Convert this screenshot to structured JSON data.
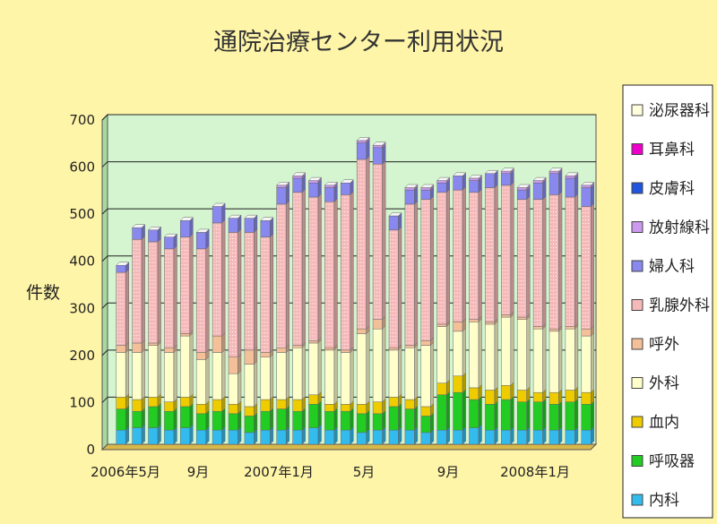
{
  "chart_data": {
    "type": "bar",
    "stacked": true,
    "title": "通院治療センター利用状況",
    "ylabel": "件数",
    "xlabel": "",
    "ylim": [
      0,
      700
    ],
    "yticks": [
      "0",
      "100",
      "200",
      "300",
      "400",
      "500",
      "600",
      "700"
    ],
    "x_tick_labels": [
      "2006年5月",
      "9月",
      "2007年1月",
      "5月",
      "9月",
      "2008年1月"
    ],
    "categories": [
      "2006-04",
      "2006-05",
      "2006-06",
      "2006-07",
      "2006-08",
      "2006-09",
      "2006-10",
      "2006-11",
      "2006-12",
      "2007-01",
      "2007-02",
      "2007-03",
      "2007-04",
      "2007-05",
      "2007-06",
      "2007-07",
      "2007-08",
      "2007-09",
      "2007-10",
      "2007-11",
      "2007-12",
      "2008-01",
      "2008-02",
      "2008-03",
      "2008-04",
      "2008-05",
      "2008-06",
      "2008-07",
      "2008-08",
      "2008-09"
    ],
    "grid": true,
    "legend_position": "right",
    "series": [
      {
        "name": "内科",
        "color": "#33BBEE",
        "values": [
          30,
          35,
          35,
          30,
          35,
          30,
          30,
          30,
          25,
          30,
          30,
          30,
          35,
          30,
          30,
          25,
          30,
          30,
          30,
          25,
          30,
          30,
          35,
          30,
          30,
          30,
          30,
          30,
          30,
          30
        ]
      },
      {
        "name": "呼吸器",
        "color": "#22CC22",
        "values": [
          45,
          35,
          45,
          40,
          45,
          35,
          40,
          35,
          35,
          40,
          45,
          40,
          50,
          40,
          40,
          40,
          35,
          50,
          45,
          35,
          75,
          80,
          60,
          55,
          65,
          60,
          60,
          55,
          60,
          55
        ]
      },
      {
        "name": "血内",
        "color": "#EECC00",
        "values": [
          25,
          25,
          20,
          20,
          20,
          20,
          25,
          20,
          20,
          25,
          20,
          25,
          20,
          15,
          15,
          20,
          25,
          20,
          20,
          20,
          25,
          35,
          25,
          30,
          30,
          25,
          20,
          25,
          25,
          25
        ]
      },
      {
        "name": "外科",
        "color": "#FFFFCC",
        "values": [
          95,
          100,
          110,
          105,
          130,
          95,
          100,
          65,
          90,
          90,
          100,
          110,
          110,
          115,
          110,
          150,
          155,
          100,
          110,
          130,
          120,
          95,
          140,
          140,
          145,
          150,
          135,
          130,
          130,
          120
        ]
      },
      {
        "name": "呼外",
        "color": "#F4C09A",
        "values": [
          15,
          20,
          5,
          10,
          5,
          15,
          35,
          35,
          30,
          10,
          10,
          5,
          5,
          5,
          5,
          10,
          20,
          5,
          5,
          10,
          5,
          20,
          5,
          5,
          5,
          5,
          5,
          5,
          5,
          15
        ]
      },
      {
        "name": "乳腺外科",
        "color": "#F6B9B9",
        "values": [
          155,
          220,
          215,
          210,
          205,
          220,
          240,
          265,
          250,
          245,
          305,
          325,
          305,
          310,
          330,
          360,
          330,
          250,
          300,
          300,
          280,
          280,
          270,
          285,
          275,
          250,
          270,
          285,
          275,
          260
        ]
      },
      {
        "name": "婦人科",
        "color": "#8888EE",
        "values": [
          15,
          25,
          25,
          25,
          35,
          35,
          35,
          30,
          30,
          35,
          35,
          30,
          30,
          30,
          25,
          35,
          35,
          30,
          30,
          20,
          20,
          30,
          25,
          30,
          25,
          20,
          35,
          45,
          40,
          40
        ]
      },
      {
        "name": "放射線科",
        "color": "#CC99EE",
        "values": [
          0,
          0,
          0,
          0,
          0,
          0,
          0,
          0,
          0,
          0,
          5,
          5,
          5,
          5,
          0,
          5,
          5,
          0,
          5,
          5,
          5,
          0,
          5,
          0,
          5,
          5,
          5,
          5,
          5,
          5
        ]
      },
      {
        "name": "皮膚科",
        "color": "#2255DD",
        "values": [
          0,
          0,
          0,
          0,
          0,
          0,
          0,
          0,
          0,
          0,
          0,
          0,
          0,
          0,
          0,
          0,
          0,
          0,
          0,
          0,
          0,
          0,
          0,
          0,
          0,
          0,
          0,
          0,
          0,
          0
        ]
      },
      {
        "name": "耳鼻科",
        "color": "#EE00CC",
        "values": [
          0,
          0,
          0,
          0,
          0,
          0,
          0,
          0,
          0,
          0,
          0,
          0,
          0,
          0,
          0,
          0,
          0,
          0,
          0,
          0,
          0,
          0,
          0,
          0,
          0,
          0,
          0,
          0,
          0,
          0
        ]
      },
      {
        "name": "泌尿器科",
        "color": "#FFFFDD",
        "values": [
          0,
          0,
          0,
          0,
          0,
          0,
          0,
          0,
          0,
          0,
          0,
          0,
          0,
          0,
          0,
          0,
          0,
          0,
          0,
          0,
          0,
          0,
          0,
          0,
          0,
          0,
          0,
          0,
          0,
          0
        ]
      }
    ]
  }
}
